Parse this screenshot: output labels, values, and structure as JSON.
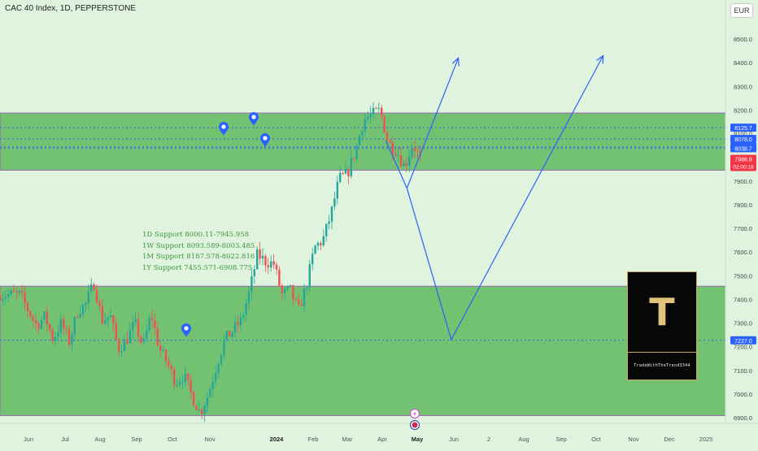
{
  "header": {
    "title": "CAC 40 Index, 1D, PEPPERSTONE",
    "currency": "EUR"
  },
  "annotations": [
    "1D Support 8000.11-7945.958",
    "1W Support 8093.589-8003.485",
    "1M Support 8187.578-8022.816",
    "1Y Support 7455.571-6908.775"
  ],
  "logo": {
    "letter": "T",
    "text": "TradeWithTheTrend3344"
  },
  "chart_data": {
    "type": "candlestick",
    "title": "CAC 40 Index, 1D, PEPPERSTONE",
    "ylim": [
      6880,
      8640
    ],
    "y_ticks": [
      6900,
      7000,
      7100,
      7200,
      7300,
      7400,
      7500,
      7600,
      7700,
      7800,
      7900,
      8000,
      8100,
      8200,
      8300,
      8400,
      8500,
      8600
    ],
    "x_axis": {
      "labels": [
        "Jun",
        "Jul",
        "Aug",
        "Sep",
        "Oct",
        "Nov",
        "2024",
        "Feb",
        "Mar",
        "Apr",
        "May",
        "Jun",
        "2",
        "Aug",
        "Sep",
        "Oct",
        "Nov",
        "Dec",
        "2025"
      ],
      "bold_labels": [
        "2024",
        "May"
      ]
    },
    "price_path": [
      [
        "2023-05-25",
        7420
      ],
      [
        "2023-06-01",
        7350
      ],
      [
        "2023-06-08",
        7290
      ],
      [
        "2023-06-15",
        7330
      ],
      [
        "2023-06-22",
        7230
      ],
      [
        "2023-06-29",
        7300
      ],
      [
        "2023-07-06",
        7220
      ],
      [
        "2023-07-13",
        7350
      ],
      [
        "2023-07-20",
        7380
      ],
      [
        "2023-07-27",
        7470
      ],
      [
        "2023-08-03",
        7310
      ],
      [
        "2023-08-10",
        7330
      ],
      [
        "2023-08-17",
        7190
      ],
      [
        "2023-08-24",
        7230
      ],
      [
        "2023-08-31",
        7300
      ],
      [
        "2023-09-07",
        7200
      ],
      [
        "2023-09-14",
        7340
      ],
      [
        "2023-09-21",
        7190
      ],
      [
        "2023-09-28",
        7130
      ],
      [
        "2023-10-05",
        7050
      ],
      [
        "2023-10-12",
        7080
      ],
      [
        "2023-10-19",
        6990
      ],
      [
        "2023-10-26",
        6920
      ],
      [
        "2023-11-02",
        7000
      ],
      [
        "2023-11-09",
        7120
      ],
      [
        "2023-11-16",
        7230
      ],
      [
        "2023-11-23",
        7270
      ],
      [
        "2023-11-30",
        7310
      ],
      [
        "2023-12-07",
        7430
      ],
      [
        "2023-12-14",
        7590
      ],
      [
        "2023-12-21",
        7560
      ],
      [
        "2023-12-28",
        7550
      ],
      [
        "2024-01-04",
        7420
      ],
      [
        "2024-01-11",
        7440
      ],
      [
        "2024-01-18",
        7350
      ],
      [
        "2024-01-25",
        7460
      ],
      [
        "2024-02-01",
        7620
      ],
      [
        "2024-02-08",
        7650
      ],
      [
        "2024-02-15",
        7760
      ],
      [
        "2024-02-22",
        7910
      ],
      [
        "2024-02-29",
        7930
      ],
      [
        "2024-03-07",
        8030
      ],
      [
        "2024-03-14",
        8160
      ],
      [
        "2024-03-21",
        8180
      ],
      [
        "2024-03-28",
        8200
      ],
      [
        "2024-04-04",
        8060
      ],
      [
        "2024-04-11",
        8030
      ],
      [
        "2024-04-18",
        7960
      ],
      [
        "2024-04-25",
        8060
      ],
      [
        "2024-05-02",
        7985
      ]
    ],
    "zones": [
      {
        "from": 8187.578,
        "to": 7945.958,
        "color": "#5fb85f"
      },
      {
        "from": 7455.571,
        "to": 6908.775,
        "color": "#5fb85f"
      }
    ],
    "dotted_levels": [
      8125.7,
      8078.0,
      8044.1,
      8038.7,
      7227.0
    ],
    "price_labels": [
      {
        "value": "8125.7",
        "y": 8125.7,
        "bg": "#2962ff"
      },
      {
        "value": "8078.0",
        "y": 8078.0,
        "bg": "#2962ff"
      },
      {
        "value": "8044.1",
        "y": 8044.1,
        "bg": "#2962ff"
      },
      {
        "value": "8038.7",
        "y": 8038.7,
        "bg": "#2962ff"
      },
      {
        "value": "7986.9",
        "sub": "02:00:18",
        "y": 7986.9,
        "bg": "#f23645"
      },
      {
        "value": "7227.0",
        "y": 7227.0,
        "bg": "#2962ff"
      }
    ],
    "projection_1": [
      [
        "2024-04-02",
        8070
      ],
      [
        "2024-04-20",
        7870
      ],
      [
        "2024-06-03",
        8420
      ]
    ],
    "projection_2": [
      [
        "2024-04-20",
        7870
      ],
      [
        "2024-05-28",
        7230
      ],
      [
        "2024-10-05",
        8430
      ]
    ],
    "colors": {
      "up": "#26a69a",
      "down": "#ef5350",
      "line": "#2962ff",
      "background": "#dff3df"
    }
  }
}
